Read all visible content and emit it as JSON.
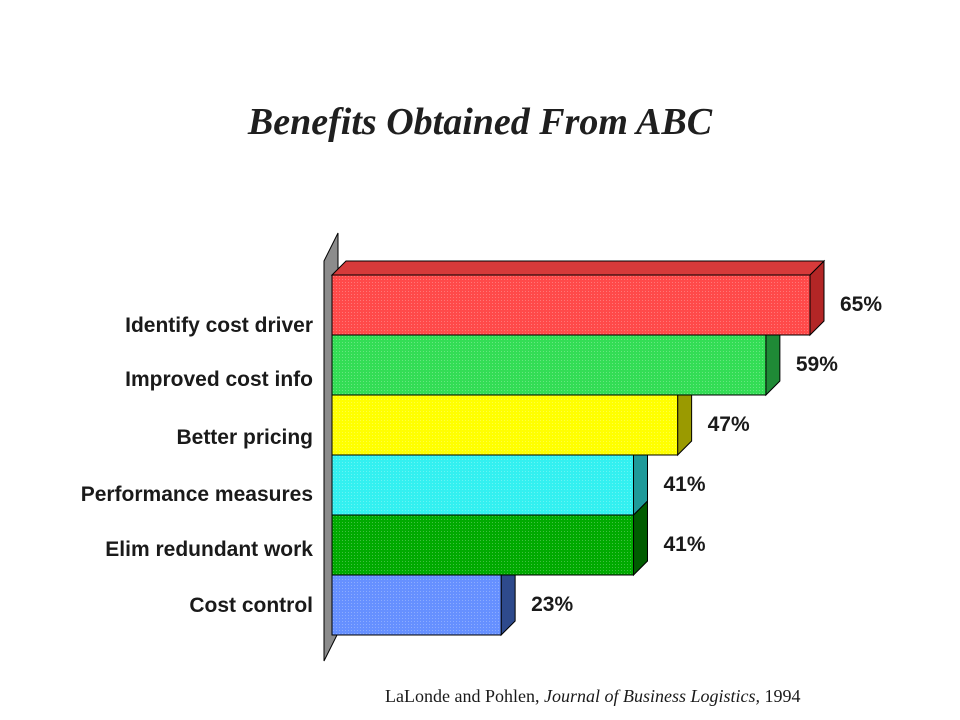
{
  "chart_data": {
    "type": "bar",
    "orientation": "horizontal",
    "title": "Benefits Obtained From ABC",
    "categories": [
      "Identify cost driver",
      "Improved cost info",
      "Better pricing",
      "Performance measures",
      "Elim redundant work",
      "Cost control"
    ],
    "values": [
      65,
      59,
      47,
      41,
      41,
      23
    ],
    "value_labels": [
      "65%",
      "59%",
      "47%",
      "41%",
      "41%",
      "23%"
    ],
    "colors": [
      "#ff4a4a",
      "#33dd55",
      "#ffff00",
      "#33f0f0",
      "#00aa00",
      "#6690ff"
    ],
    "side_colors": [
      "#b32626",
      "#1f8a36",
      "#9a9a00",
      "#1f9a9a",
      "#005c00",
      "#2e4a8c"
    ],
    "top_color": "#d63a3a",
    "xlim": [
      0,
      70
    ],
    "grid": false,
    "legend": "none"
  },
  "source": {
    "authors": "LaLonde and Pohlen,",
    "journal": "Journal  of Business  Logistics,",
    "year": "1994"
  }
}
